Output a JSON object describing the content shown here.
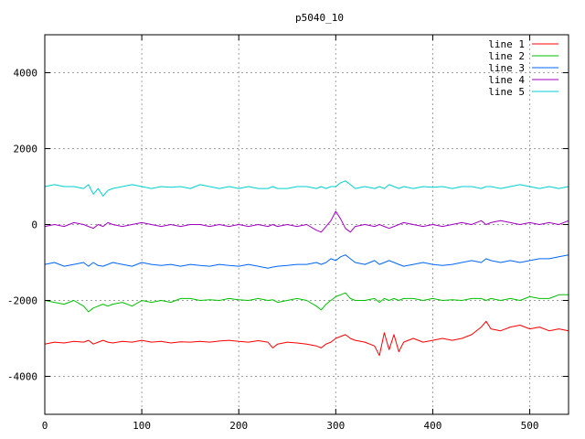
{
  "chart_data": {
    "type": "line",
    "title": "p5040_10",
    "xlabel": "",
    "ylabel": "",
    "xlim": [
      0,
      540
    ],
    "ylim": [
      -5000,
      5000
    ],
    "xticks": [
      0,
      100,
      200,
      300,
      400,
      500
    ],
    "yticks": [
      -4000,
      -2000,
      0,
      2000,
      4000
    ],
    "ytick_labels": [
      "-4000",
      "-2000",
      "0",
      "2000",
      "4000"
    ],
    "grid": true,
    "legend_position": "top-right",
    "x": [
      0,
      10,
      20,
      30,
      40,
      45,
      50,
      55,
      60,
      65,
      70,
      80,
      90,
      100,
      110,
      120,
      130,
      140,
      150,
      160,
      170,
      180,
      190,
      200,
      210,
      220,
      230,
      235,
      240,
      250,
      260,
      270,
      280,
      285,
      290,
      295,
      300,
      305,
      310,
      315,
      320,
      330,
      340,
      345,
      350,
      355,
      360,
      365,
      370,
      380,
      390,
      400,
      410,
      420,
      430,
      440,
      450,
      455,
      460,
      470,
      480,
      490,
      500,
      510,
      520,
      530,
      540
    ],
    "series": [
      {
        "name": "line 1",
        "color": "#ff0000",
        "values": [
          -3150,
          -3100,
          -3120,
          -3080,
          -3100,
          -3050,
          -3150,
          -3100,
          -3050,
          -3100,
          -3120,
          -3080,
          -3100,
          -3050,
          -3100,
          -3080,
          -3120,
          -3090,
          -3100,
          -3080,
          -3100,
          -3070,
          -3050,
          -3080,
          -3100,
          -3060,
          -3100,
          -3250,
          -3150,
          -3100,
          -3120,
          -3150,
          -3200,
          -3250,
          -3150,
          -3100,
          -3000,
          -2950,
          -2900,
          -3000,
          -3050,
          -3100,
          -3200,
          -3450,
          -2850,
          -3300,
          -2900,
          -3350,
          -3100,
          -3000,
          -3100,
          -3050,
          -3000,
          -3050,
          -3000,
          -2900,
          -2700,
          -2550,
          -2750,
          -2800,
          -2700,
          -2650,
          -2750,
          -2700,
          -2800,
          -2750,
          -2800
        ]
      },
      {
        "name": "line 2",
        "color": "#00c000",
        "values": [
          -2000,
          -2050,
          -2100,
          -2000,
          -2150,
          -2300,
          -2200,
          -2150,
          -2100,
          -2150,
          -2100,
          -2050,
          -2150,
          -2000,
          -2050,
          -2000,
          -2050,
          -1950,
          -1950,
          -2000,
          -1980,
          -2000,
          -1950,
          -1980,
          -2000,
          -1950,
          -2000,
          -1980,
          -2050,
          -2000,
          -1950,
          -2000,
          -2150,
          -2250,
          -2100,
          -2000,
          -1900,
          -1850,
          -1800,
          -1950,
          -2000,
          -2000,
          -1950,
          -2050,
          -1950,
          -2000,
          -1950,
          -2000,
          -1950,
          -1950,
          -2000,
          -1950,
          -2000,
          -1980,
          -2000,
          -1950,
          -1950,
          -2000,
          -1950,
          -2000,
          -1950,
          -2000,
          -1900,
          -1950,
          -1950,
          -1850,
          -1850
        ]
      },
      {
        "name": "line 3",
        "color": "#0066ff",
        "values": [
          -1050,
          -1000,
          -1100,
          -1050,
          -1000,
          -1100,
          -1000,
          -1080,
          -1100,
          -1050,
          -1000,
          -1050,
          -1100,
          -1000,
          -1050,
          -1080,
          -1050,
          -1100,
          -1050,
          -1080,
          -1100,
          -1050,
          -1080,
          -1100,
          -1050,
          -1100,
          -1150,
          -1120,
          -1100,
          -1080,
          -1050,
          -1050,
          -1000,
          -1050,
          -1000,
          -900,
          -950,
          -850,
          -800,
          -900,
          -1000,
          -1050,
          -950,
          -1050,
          -1000,
          -950,
          -1000,
          -1050,
          -1100,
          -1050,
          -1000,
          -1050,
          -1080,
          -1050,
          -1000,
          -950,
          -1000,
          -900,
          -950,
          -1000,
          -950,
          -1000,
          -950,
          -900,
          -900,
          -850,
          -800
        ]
      },
      {
        "name": "line 4",
        "color": "#a000c0",
        "values": [
          -50,
          0,
          -50,
          50,
          0,
          -50,
          -100,
          0,
          -50,
          50,
          0,
          -50,
          0,
          50,
          0,
          -50,
          0,
          -50,
          0,
          0,
          -50,
          0,
          -50,
          0,
          -50,
          0,
          -50,
          0,
          -50,
          0,
          -50,
          0,
          -150,
          -200,
          -50,
          100,
          350,
          150,
          -100,
          -200,
          -50,
          0,
          -50,
          0,
          -50,
          -100,
          -50,
          0,
          50,
          0,
          -50,
          0,
          -50,
          0,
          50,
          0,
          100,
          0,
          50,
          100,
          50,
          0,
          50,
          0,
          50,
          0,
          100
        ]
      },
      {
        "name": "line 5",
        "color": "#00d0d0",
        "values": [
          1000,
          1050,
          1000,
          1000,
          950,
          1050,
          800,
          950,
          750,
          900,
          950,
          1000,
          1050,
          1000,
          950,
          1000,
          980,
          1000,
          950,
          1050,
          1000,
          950,
          1000,
          950,
          1000,
          950,
          950,
          1000,
          950,
          950,
          1000,
          1000,
          950,
          1000,
          950,
          1000,
          1000,
          1100,
          1150,
          1050,
          950,
          1000,
          950,
          1000,
          950,
          1050,
          1000,
          950,
          1000,
          950,
          1000,
          980,
          1000,
          950,
          1000,
          1000,
          950,
          1000,
          1000,
          950,
          1000,
          1050,
          1000,
          950,
          1000,
          950,
          1000
        ]
      }
    ]
  }
}
